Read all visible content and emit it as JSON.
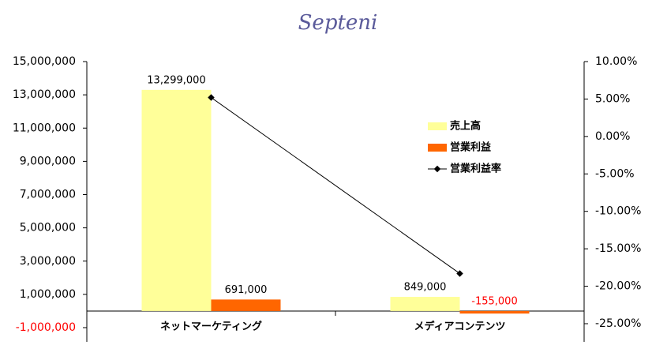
{
  "logo": "Septeni",
  "chart_data": {
    "type": "bar",
    "categories": [
      "ネットマーケティング",
      "メディアコンテンツ"
    ],
    "series": [
      {
        "name": "売上高",
        "color": "#ffff99",
        "values": [
          13299000,
          849000
        ],
        "value_labels": [
          "13,299,000",
          "849,000"
        ]
      },
      {
        "name": "営業利益",
        "color": "#ff6600",
        "values": [
          691000,
          -155000
        ],
        "value_labels": [
          "691,000",
          "-155,000"
        ]
      },
      {
        "name": "営業利益率",
        "type": "line",
        "axis": "y2",
        "color": "#000000",
        "values": [
          5.2,
          -18.3
        ]
      }
    ],
    "ylim": [
      -1000000,
      15000000
    ],
    "yticks": [
      {
        "value": -1000000,
        "label": "-1,000,000"
      },
      {
        "value": 1000000,
        "label": "1,000,000"
      },
      {
        "value": 3000000,
        "label": "3,000,000"
      },
      {
        "value": 5000000,
        "label": "5,000,000"
      },
      {
        "value": 7000000,
        "label": "7,000,000"
      },
      {
        "value": 9000000,
        "label": "9,000,000"
      },
      {
        "value": 11000000,
        "label": "11,000,000"
      },
      {
        "value": 13000000,
        "label": "13,000,000"
      },
      {
        "value": 15000000,
        "label": "15,000,000"
      }
    ],
    "y2lim": [
      -25,
      10
    ],
    "y2ticks": [
      {
        "value": -25,
        "label": "-25.00%"
      },
      {
        "value": -20,
        "label": "-20.00%"
      },
      {
        "value": -15,
        "label": "-15.00%"
      },
      {
        "value": -10,
        "label": "-10.00%"
      },
      {
        "value": -5,
        "label": "-5.00%"
      },
      {
        "value": 0,
        "label": "0.00%"
      },
      {
        "value": 5,
        "label": "5.00%"
      },
      {
        "value": 10,
        "label": "10.00%"
      }
    ],
    "negative_color": "#ff0000",
    "legend": "upper-right"
  }
}
